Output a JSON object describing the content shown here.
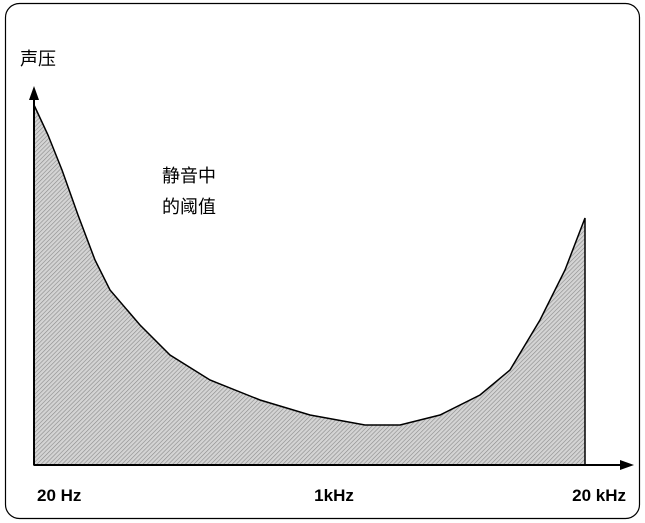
{
  "axis_label": "声压",
  "annotation": [
    "静音中",
    "的阈值"
  ],
  "x_labels": [
    "20 Hz",
    "1kHz",
    "20 kHz"
  ]
}
